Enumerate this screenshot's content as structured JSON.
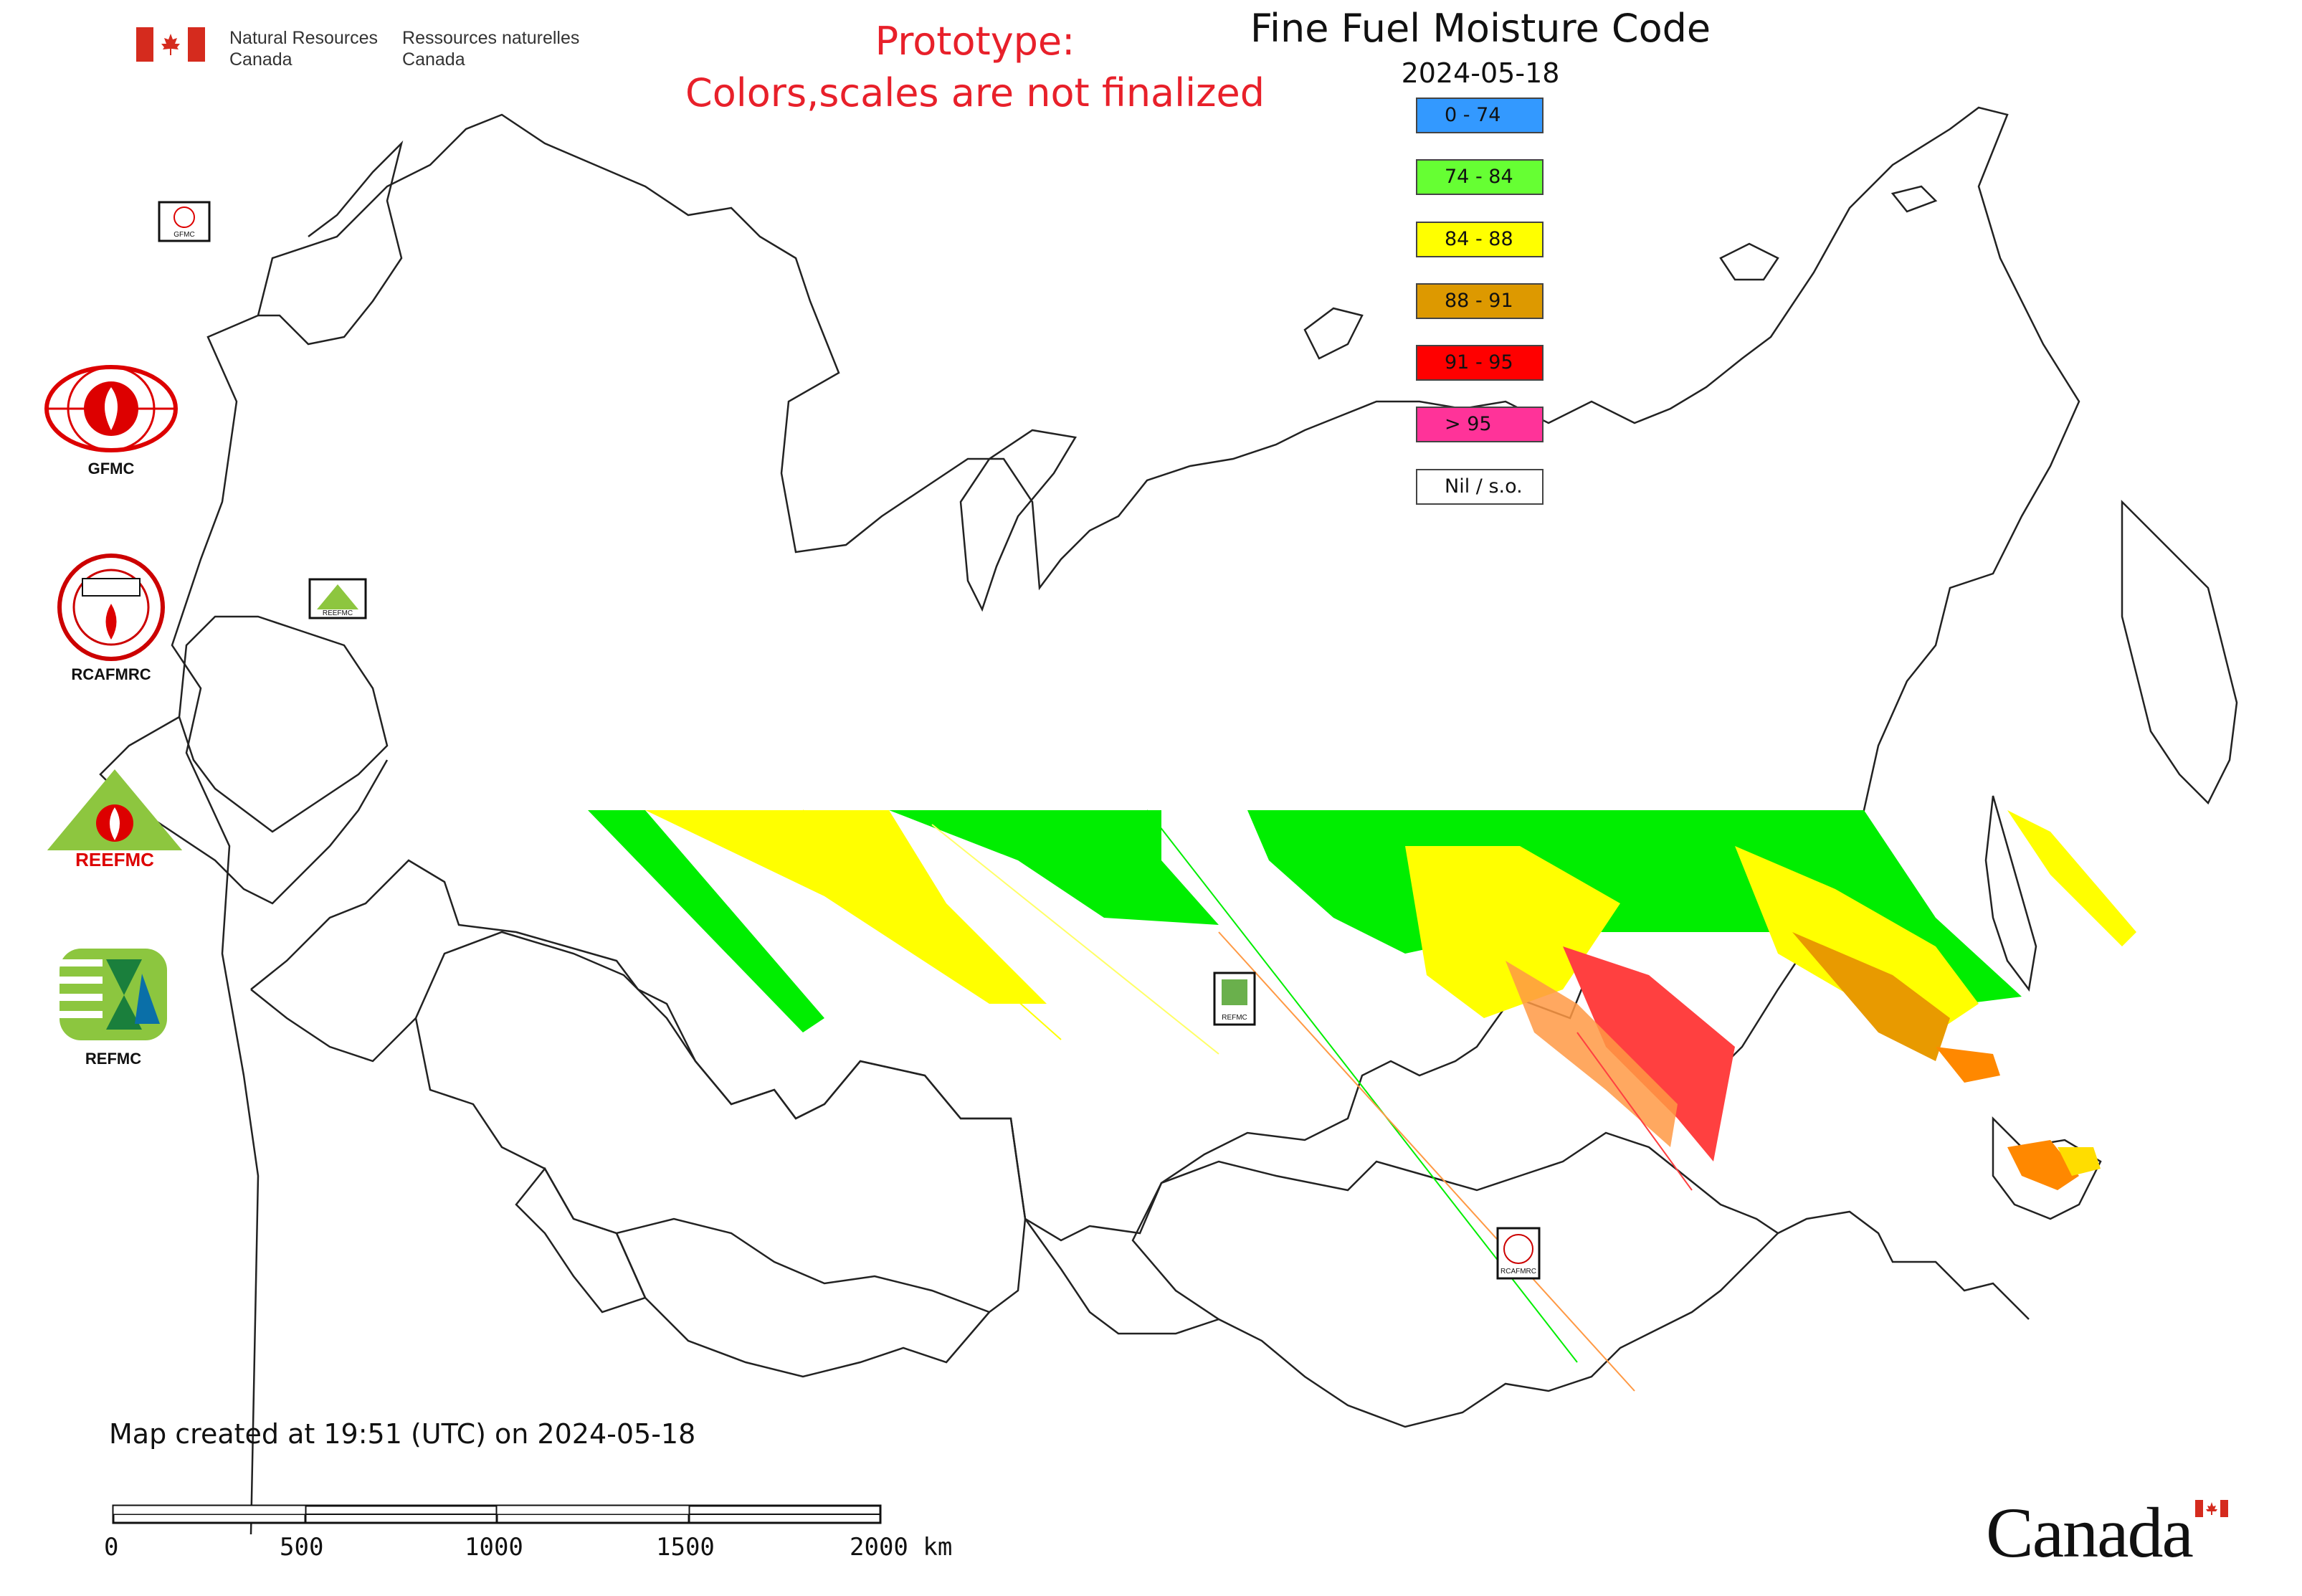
{
  "header": {
    "agency_en_1": "Natural Resources",
    "agency_en_2": "Canada",
    "agency_fr_1": "Ressources naturelles",
    "agency_fr_2": "Canada"
  },
  "notice": {
    "line1": "Prototype:",
    "line2": "Colors,scales are not finalized"
  },
  "map": {
    "title": "Fine Fuel Moisture Code",
    "date": "2024-05-18",
    "created": "Map created at 19:51 (UTC) on 2024-05-18"
  },
  "legend": [
    {
      "label": "0 - 74",
      "color": "#3399ff"
    },
    {
      "label": "74 - 84",
      "color": "#66ff33"
    },
    {
      "label": "84 - 88",
      "color": "#ffff00"
    },
    {
      "label": "88 - 91",
      "color": "#dd9900"
    },
    {
      "label": "91 - 95",
      "color": "#ff0000"
    },
    {
      "label": "> 95",
      "color": "#ff3399"
    },
    {
      "label": "Nil / s.o.",
      "color": "#ffffff"
    }
  ],
  "logos": [
    {
      "name": "GFMC",
      "label": "GFMC"
    },
    {
      "name": "RCAFMRC",
      "label": "RCAFMRC"
    },
    {
      "name": "REEFMC",
      "label": "REEFMC"
    },
    {
      "name": "REFMC",
      "label": "REFMC"
    }
  ],
  "map_markers": [
    {
      "label": "GFMC"
    },
    {
      "label": "REEFMC"
    },
    {
      "label": "REFMC"
    },
    {
      "label": "RCAFMRC"
    }
  ],
  "scale_bar": {
    "ticks": [
      "0",
      "500",
      "1000",
      "1500",
      "2000 km"
    ]
  },
  "footer": {
    "wordmark": "Canada"
  }
}
